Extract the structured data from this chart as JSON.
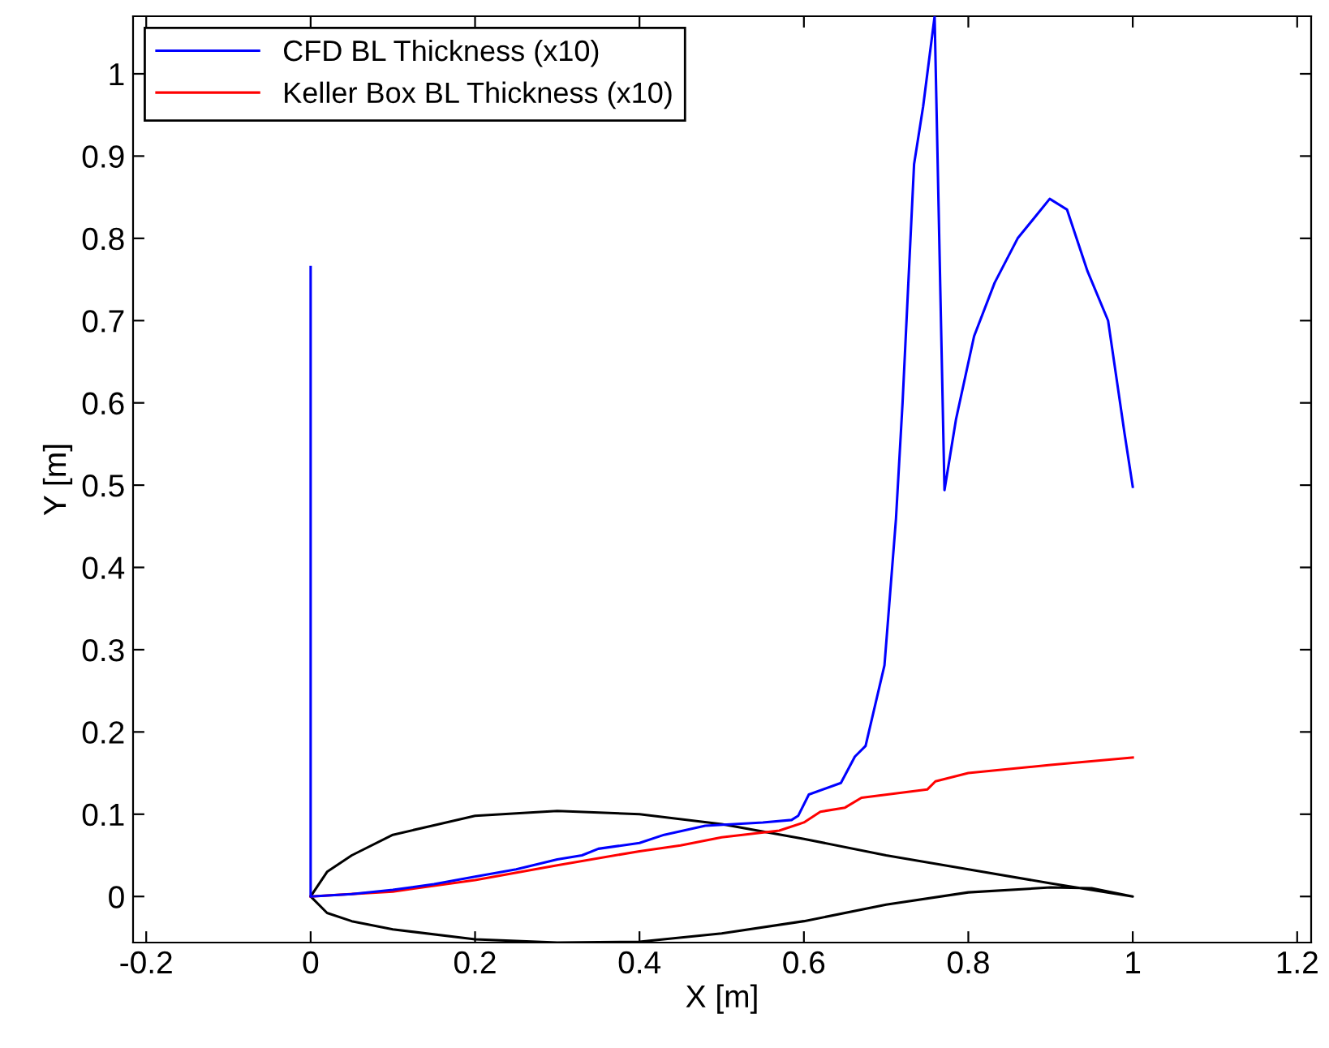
{
  "chart_data": {
    "type": "line",
    "xlabel": "X [m]",
    "ylabel": "Y [m]",
    "xlim": [
      -0.216,
      1.217
    ],
    "ylim": [
      -0.056,
      1.07
    ],
    "xticks": [
      {
        "value": -0.2,
        "label": "-0.2"
      },
      0,
      0.2,
      0.4,
      0.6,
      0.8,
      1,
      1.2
    ],
    "yticks": [
      0,
      0.1,
      0.2,
      0.3,
      0.4,
      0.5,
      0.6,
      0.7,
      0.8,
      0.9,
      1
    ],
    "grid": false,
    "legend": "top left",
    "marker": "none",
    "line_style": "solid",
    "series": [
      {
        "name": "CFD BL Thickness (x10)",
        "color": "#0000ff",
        "x": [
          0,
          0,
          0.05,
          0.1,
          0.15,
          0.2,
          0.25,
          0.3,
          0.33,
          0.35,
          0.4,
          0.43,
          0.48,
          0.55,
          0.585,
          0.593,
          0.606,
          0.645,
          0.662,
          0.675,
          0.698,
          0.712,
          0.72,
          0.734,
          0.745,
          0.759,
          0.771,
          0.785,
          0.807,
          0.832,
          0.86,
          0.899,
          0.92,
          0.945,
          0.97,
          0.99,
          1.0
        ],
        "values": [
          0.765,
          0,
          0.003,
          0.008,
          0.015,
          0.024,
          0.033,
          0.045,
          0.05,
          0.058,
          0.065,
          0.075,
          0.086,
          0.09,
          0.093,
          0.098,
          0.124,
          0.138,
          0.17,
          0.183,
          0.281,
          0.459,
          0.6,
          0.89,
          0.96,
          1.07,
          0.494,
          0.58,
          0.681,
          0.746,
          0.8,
          0.848,
          0.835,
          0.76,
          0.7,
          0.563,
          0.498
        ]
      },
      {
        "name": "Keller Box BL Thickness (x10)",
        "color": "#ff0000",
        "x": [
          0,
          0.1,
          0.2,
          0.3,
          0.4,
          0.45,
          0.5,
          0.57,
          0.6,
          0.62,
          0.65,
          0.67,
          0.75,
          0.76,
          0.8,
          0.9,
          1.0
        ],
        "values": [
          0,
          0.006,
          0.02,
          0.038,
          0.055,
          0.062,
          0.072,
          0.08,
          0.09,
          0.103,
          0.108,
          0.12,
          0.13,
          0.14,
          0.15,
          0.16,
          0.169
        ]
      }
    ]
  }
}
